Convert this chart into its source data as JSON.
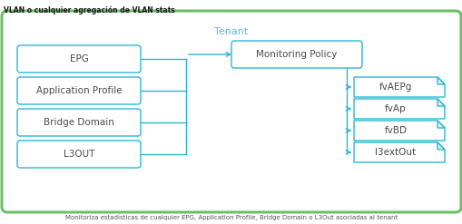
{
  "title_top": "VLAN o cualquier agregación de VLAN stats",
  "title_bottom": "Monitoriza estadísticas de cualquier EPG, Application Profile, Bridge Domain o L3Out asociadas al tenant",
  "tenant_label": "Tenant",
  "outer_box_color": "#6abf69",
  "inner_line_color": "#29b6d4",
  "bg_color": "#ffffff",
  "text_color_dark": "#4a4a4a",
  "text_color_tenant": "#5bbcd4",
  "left_boxes": [
    "EPG",
    "Application Profile",
    "Bridge Domain",
    "L3OUT"
  ],
  "center_box": "Monitoring Policy",
  "right_boxes": [
    "fvAEPg",
    "fvAp",
    "fvBD",
    "l3extOut"
  ],
  "title_top_color": "#1a1a1a",
  "title_bottom_color": "#555555",
  "fig_w": 5.1,
  "fig_h": 2.47,
  "dpi": 100
}
